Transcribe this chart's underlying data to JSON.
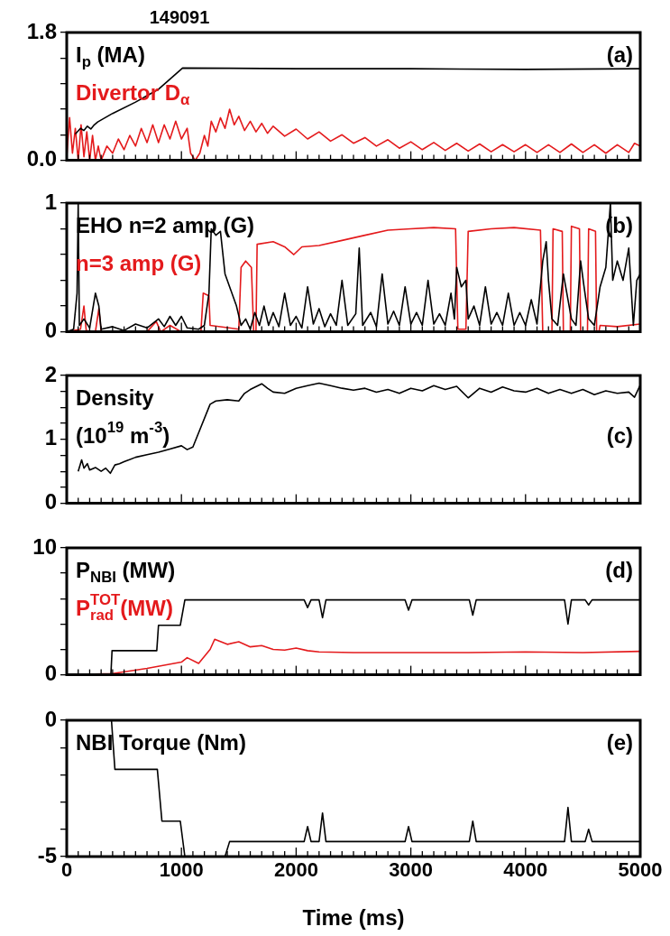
{
  "chart_data": [
    {
      "type": "line",
      "title": "149091",
      "annotations": [
        "(a)"
      ],
      "xlim": [
        0,
        5000
      ],
      "ylim": [
        0,
        1.8
      ],
      "yticks": [
        {
          "value": 0,
          "label": "0.0"
        },
        {
          "value": 0.36,
          "label": null
        },
        {
          "value": 0.72,
          "label": null
        },
        {
          "value": 1.08,
          "label": null
        },
        {
          "value": 1.44,
          "label": null
        },
        1.8
      ],
      "xticks": [
        {
          "value": 0,
          "label": null
        },
        {
          "value": 100,
          "label": null
        },
        {
          "value": 200,
          "label": null
        },
        {
          "value": 300,
          "label": null
        },
        {
          "value": 400,
          "label": null
        },
        {
          "value": 500,
          "label": null
        },
        {
          "value": 600,
          "label": null
        },
        {
          "value": 700,
          "label": null
        },
        {
          "value": 800,
          "label": null
        },
        {
          "value": 900,
          "label": null
        },
        {
          "value": 1000,
          "label": null
        },
        {
          "value": 1100,
          "label": null
        },
        {
          "value": 1200,
          "label": null
        },
        {
          "value": 1300,
          "label": null
        },
        {
          "value": 1400,
          "label": null
        },
        {
          "value": 1500,
          "label": null
        },
        {
          "value": 1600,
          "label": null
        },
        {
          "value": 1700,
          "label": null
        },
        {
          "value": 1800,
          "label": null
        },
        {
          "value": 1900,
          "label": null
        },
        {
          "value": 2000,
          "label": null
        },
        {
          "value": 2100,
          "label": null
        },
        {
          "value": 2200,
          "label": null
        },
        {
          "value": 2300,
          "label": null
        },
        {
          "value": 2400,
          "label": null
        },
        {
          "value": 2500,
          "label": null
        },
        {
          "value": 2600,
          "label": null
        },
        {
          "value": 2700,
          "label": null
        },
        {
          "value": 2800,
          "label": null
        },
        {
          "value": 2900,
          "label": null
        },
        {
          "value": 3000,
          "label": null
        },
        {
          "value": 3100,
          "label": null
        },
        {
          "value": 3200,
          "label": null
        },
        {
          "value": 3300,
          "label": null
        },
        {
          "value": 3400,
          "label": null
        },
        {
          "value": 3500,
          "label": null
        },
        {
          "value": 3600,
          "label": null
        },
        {
          "value": 3700,
          "label": null
        },
        {
          "value": 3800,
          "label": null
        },
        {
          "value": 3900,
          "label": null
        },
        {
          "value": 4000,
          "label": null
        },
        {
          "value": 4100,
          "label": null
        },
        {
          "value": 4200,
          "label": null
        },
        {
          "value": 4300,
          "label": null
        },
        {
          "value": 4400,
          "label": null
        },
        {
          "value": 4500,
          "label": null
        },
        {
          "value": 4600,
          "label": null
        },
        {
          "value": 4700,
          "label": null
        },
        {
          "value": 4800,
          "label": null
        },
        {
          "value": 4900,
          "label": null
        },
        {
          "value": 5000,
          "label": null
        }
      ],
      "tick_labels": "y",
      "series": [
        {
          "name": "I$_{p}$ (MA)",
          "color": "#000000",
          "x": [
            75,
            120,
            150,
            180,
            210,
            240,
            270,
            400,
            600,
            700,
            800,
            1010,
            2000,
            3000,
            4000,
            5000
          ],
          "values": [
            0.37,
            0.45,
            0.42,
            0.48,
            0.44,
            0.5,
            0.54,
            0.66,
            0.82,
            0.91,
            1.0,
            1.3,
            1.29,
            1.29,
            1.28,
            1.29
          ]
        },
        {
          "name": "Divertor D$_{α}$",
          "color": "#e41a1c",
          "x": [
            0,
            25,
            50,
            75,
            100,
            125,
            150,
            175,
            200,
            225,
            250,
            275,
            300,
            350,
            400,
            450,
            500,
            550,
            600,
            650,
            700,
            750,
            800,
            850,
            900,
            950,
            1000,
            1050,
            1080,
            1120,
            1160,
            1200,
            1230,
            1260,
            1300,
            1340,
            1380,
            1420,
            1460,
            1500,
            1550,
            1600,
            1650,
            1700,
            1750,
            1800,
            1900,
            2000,
            2100,
            2200,
            2300,
            2400,
            2500,
            2600,
            2700,
            2800,
            2900,
            3000,
            3100,
            3200,
            3300,
            3400,
            3500,
            3600,
            3700,
            3800,
            3900,
            4000,
            4100,
            4200,
            4300,
            4400,
            4500,
            4600,
            4700,
            4800,
            4900,
            4950,
            5000
          ],
          "values": [
            0.05,
            0.6,
            0.1,
            0.45,
            0.0,
            0.5,
            0.05,
            0.4,
            0.0,
            0.35,
            0.0,
            0.2,
            0.0,
            0.2,
            0.1,
            0.3,
            0.15,
            0.35,
            0.2,
            0.45,
            0.25,
            0.5,
            0.25,
            0.5,
            0.3,
            0.55,
            0.3,
            0.45,
            0.1,
            0.0,
            0.1,
            0.35,
            0.2,
            0.55,
            0.4,
            0.6,
            0.45,
            0.72,
            0.5,
            0.62,
            0.42,
            0.55,
            0.4,
            0.52,
            0.38,
            0.48,
            0.34,
            0.44,
            0.3,
            0.4,
            0.27,
            0.36,
            0.24,
            0.32,
            0.2,
            0.29,
            0.17,
            0.26,
            0.15,
            0.25,
            0.14,
            0.24,
            0.13,
            0.23,
            0.12,
            0.22,
            0.12,
            0.22,
            0.11,
            0.22,
            0.11,
            0.23,
            0.11,
            0.22,
            0.1,
            0.22,
            0.11,
            0.24,
            0.2
          ]
        }
      ]
    },
    {
      "type": "line",
      "annotations": [
        "(b)"
      ],
      "xlim": [
        0,
        5000
      ],
      "ylim": [
        0,
        1
      ],
      "yticks": [
        0,
        {
          "value": 0.2,
          "label": null
        },
        {
          "value": 0.4,
          "label": null
        },
        {
          "value": 0.6,
          "label": null
        },
        {
          "value": 0.8,
          "label": null
        },
        1
      ],
      "xticks": [
        {
          "value": 0,
          "label": null
        },
        {
          "value": 100,
          "label": null
        },
        {
          "value": 200,
          "label": null
        },
        {
          "value": 300,
          "label": null
        },
        {
          "value": 400,
          "label": null
        },
        {
          "value": 500,
          "label": null
        },
        {
          "value": 600,
          "label": null
        },
        {
          "value": 700,
          "label": null
        },
        {
          "value": 800,
          "label": null
        },
        {
          "value": 900,
          "label": null
        },
        {
          "value": 1000,
          "label": null
        },
        {
          "value": 1100,
          "label": null
        },
        {
          "value": 1200,
          "label": null
        },
        {
          "value": 1300,
          "label": null
        },
        {
          "value": 1400,
          "label": null
        },
        {
          "value": 1500,
          "label": null
        },
        {
          "value": 1600,
          "label": null
        },
        {
          "value": 1700,
          "label": null
        },
        {
          "value": 1800,
          "label": null
        },
        {
          "value": 1900,
          "label": null
        },
        {
          "value": 2000,
          "label": null
        },
        {
          "value": 2100,
          "label": null
        },
        {
          "value": 2200,
          "label": null
        },
        {
          "value": 2300,
          "label": null
        },
        {
          "value": 2400,
          "label": null
        },
        {
          "value": 2500,
          "label": null
        },
        {
          "value": 2600,
          "label": null
        },
        {
          "value": 2700,
          "label": null
        },
        {
          "value": 2800,
          "label": null
        },
        {
          "value": 2900,
          "label": null
        },
        {
          "value": 3000,
          "label": null
        },
        {
          "value": 3100,
          "label": null
        },
        {
          "value": 3200,
          "label": null
        },
        {
          "value": 3300,
          "label": null
        },
        {
          "value": 3400,
          "label": null
        },
        {
          "value": 3500,
          "label": null
        },
        {
          "value": 3600,
          "label": null
        },
        {
          "value": 3700,
          "label": null
        },
        {
          "value": 3800,
          "label": null
        },
        {
          "value": 3900,
          "label": null
        },
        {
          "value": 4000,
          "label": null
        },
        {
          "value": 4100,
          "label": null
        },
        {
          "value": 4200,
          "label": null
        },
        {
          "value": 4300,
          "label": null
        },
        {
          "value": 4400,
          "label": null
        },
        {
          "value": 4500,
          "label": null
        },
        {
          "value": 4600,
          "label": null
        },
        {
          "value": 4700,
          "label": null
        },
        {
          "value": 4800,
          "label": null
        },
        {
          "value": 4900,
          "label": null
        },
        {
          "value": 5000,
          "label": null
        }
      ],
      "tick_labels": "y",
      "series": [
        {
          "name": "EHO n=2 amp (G)",
          "color": "#000000",
          "x": [
            0,
            60,
            90,
            100,
            110,
            150,
            200,
            250,
            280,
            300,
            400,
            500,
            600,
            700,
            800,
            850,
            900,
            950,
            1000,
            1050,
            1150,
            1200,
            1240,
            1260,
            1300,
            1340,
            1380,
            1420,
            1480,
            1520,
            1560,
            1600,
            1640,
            1680,
            1720,
            1760,
            1800,
            1850,
            1900,
            1950,
            2000,
            2050,
            2100,
            2150,
            2200,
            2250,
            2300,
            2350,
            2400,
            2450,
            2520,
            2550,
            2580,
            2650,
            2700,
            2750,
            2800,
            2850,
            2900,
            2950,
            3000,
            3050,
            3100,
            3150,
            3200,
            3250,
            3300,
            3350,
            3380,
            3400,
            3440,
            3480,
            3500,
            3550,
            3600,
            3650,
            3700,
            3750,
            3800,
            3850,
            3900,
            3950,
            4000,
            4050,
            4100,
            4150,
            4180,
            4200,
            4230,
            4280,
            4330,
            4360,
            4400,
            4440,
            4480,
            4510,
            4550,
            4600,
            4650,
            4700,
            4740,
            4760,
            4800,
            4850,
            4900,
            4940,
            4970,
            5000
          ],
          "values": [
            0.0,
            0.02,
            0.3,
            1.0,
            0.05,
            0.1,
            0.03,
            0.3,
            0.2,
            0.02,
            0.04,
            0.01,
            0.06,
            0.03,
            0.1,
            0.04,
            0.12,
            0.05,
            0.12,
            0.03,
            0.02,
            0.05,
            0.3,
            0.8,
            0.75,
            0.78,
            0.45,
            0.35,
            0.2,
            0.05,
            0.1,
            0.02,
            0.15,
            0.05,
            0.2,
            0.05,
            0.15,
            0.04,
            0.3,
            0.05,
            0.12,
            0.03,
            0.35,
            0.06,
            0.18,
            0.04,
            0.14,
            0.05,
            0.4,
            0.05,
            0.14,
            0.65,
            0.05,
            0.15,
            0.04,
            0.45,
            0.06,
            0.16,
            0.05,
            0.35,
            0.06,
            0.15,
            0.05,
            0.4,
            0.06,
            0.14,
            0.05,
            0.3,
            0.1,
            0.5,
            0.35,
            0.4,
            0.1,
            0.2,
            0.05,
            0.35,
            0.06,
            0.15,
            0.05,
            0.3,
            0.05,
            0.15,
            0.05,
            0.25,
            0.06,
            0.55,
            0.7,
            0.4,
            0.1,
            0.05,
            0.45,
            0.3,
            0.1,
            0.05,
            0.55,
            0.35,
            0.1,
            0.05,
            0.35,
            0.5,
            1.0,
            0.4,
            0.55,
            0.4,
            0.65,
            0.05,
            0.4,
            0.45
          ]
        },
        {
          "name": "n=3 amp (G)",
          "color": "#e41a1c",
          "x": [
            0,
            120,
            150,
            170,
            250,
            280,
            300,
            700,
            780,
            820,
            900,
            1000,
            1170,
            1190,
            1240,
            1250,
            1500,
            1520,
            1560,
            1610,
            1630,
            1650,
            1660,
            1800,
            1900,
            1980,
            2050,
            2200,
            2400,
            2600,
            2800,
            3000,
            3200,
            3390,
            3410,
            3480,
            3500,
            3700,
            3900,
            4130,
            4150,
            4230,
            4240,
            4320,
            4330,
            4390,
            4400,
            4470,
            4480,
            4540,
            4550,
            4610,
            4620,
            4640,
            4650,
            4800,
            5000
          ],
          "values": [
            0.0,
            0.02,
            0.2,
            0.01,
            0.0,
            0.18,
            0.0,
            0.0,
            0.08,
            0.0,
            0.05,
            0.0,
            0.0,
            0.3,
            0.28,
            0.05,
            0.02,
            0.5,
            0.55,
            0.5,
            0.0,
            0.01,
            0.68,
            0.7,
            0.66,
            0.6,
            0.66,
            0.67,
            0.71,
            0.75,
            0.79,
            0.8,
            0.81,
            0.8,
            0.02,
            0.02,
            0.78,
            0.8,
            0.81,
            0.79,
            0.0,
            0.0,
            0.8,
            0.78,
            0.0,
            0.0,
            0.82,
            0.8,
            0.0,
            0.0,
            0.8,
            0.78,
            0.0,
            0.0,
            0.05,
            0.04,
            0.06
          ]
        }
      ]
    },
    {
      "type": "line",
      "annotations": [
        "(10$^{19}$ m$^{-3}$)",
        "(c)"
      ],
      "xlim": [
        0,
        5000
      ],
      "ylim": [
        0,
        2
      ],
      "yticks": [
        0,
        {
          "value": 0.25,
          "label": null
        },
        {
          "value": 0.5,
          "label": null
        },
        {
          "value": 0.75,
          "label": null
        },
        1,
        {
          "value": 1.25,
          "label": null
        },
        {
          "value": 1.5,
          "label": null
        },
        {
          "value": 1.75,
          "label": null
        },
        2
      ],
      "xticks": [
        {
          "value": 0,
          "label": null
        },
        {
          "value": 100,
          "label": null
        },
        {
          "value": 200,
          "label": null
        },
        {
          "value": 300,
          "label": null
        },
        {
          "value": 400,
          "label": null
        },
        {
          "value": 500,
          "label": null
        },
        {
          "value": 600,
          "label": null
        },
        {
          "value": 700,
          "label": null
        },
        {
          "value": 800,
          "label": null
        },
        {
          "value": 900,
          "label": null
        },
        {
          "value": 1000,
          "label": null
        },
        {
          "value": 1100,
          "label": null
        },
        {
          "value": 1200,
          "label": null
        },
        {
          "value": 1300,
          "label": null
        },
        {
          "value": 1400,
          "label": null
        },
        {
          "value": 1500,
          "label": null
        },
        {
          "value": 1600,
          "label": null
        },
        {
          "value": 1700,
          "label": null
        },
        {
          "value": 1800,
          "label": null
        },
        {
          "value": 1900,
          "label": null
        },
        {
          "value": 2000,
          "label": null
        },
        {
          "value": 2100,
          "label": null
        },
        {
          "value": 2200,
          "label": null
        },
        {
          "value": 2300,
          "label": null
        },
        {
          "value": 2400,
          "label": null
        },
        {
          "value": 2500,
          "label": null
        },
        {
          "value": 2600,
          "label": null
        },
        {
          "value": 2700,
          "label": null
        },
        {
          "value": 2800,
          "label": null
        },
        {
          "value": 2900,
          "label": null
        },
        {
          "value": 3000,
          "label": null
        },
        {
          "value": 3100,
          "label": null
        },
        {
          "value": 3200,
          "label": null
        },
        {
          "value": 3300,
          "label": null
        },
        {
          "value": 3400,
          "label": null
        },
        {
          "value": 3500,
          "label": null
        },
        {
          "value": 3600,
          "label": null
        },
        {
          "value": 3700,
          "label": null
        },
        {
          "value": 3800,
          "label": null
        },
        {
          "value": 3900,
          "label": null
        },
        {
          "value": 4000,
          "label": null
        },
        {
          "value": 4100,
          "label": null
        },
        {
          "value": 4200,
          "label": null
        },
        {
          "value": 4300,
          "label": null
        },
        {
          "value": 4400,
          "label": null
        },
        {
          "value": 4500,
          "label": null
        },
        {
          "value": 4600,
          "label": null
        },
        {
          "value": 4700,
          "label": null
        },
        {
          "value": 4800,
          "label": null
        },
        {
          "value": 4900,
          "label": null
        },
        {
          "value": 5000,
          "label": null
        }
      ],
      "tick_labels": "y",
      "series": [
        {
          "name": "Density",
          "color": "#000000",
          "x": [
            100,
            130,
            150,
            180,
            200,
            250,
            300,
            340,
            380,
            420,
            460,
            500,
            600,
            700,
            800,
            900,
            1000,
            1050,
            1100,
            1250,
            1300,
            1400,
            1500,
            1550,
            1600,
            1700,
            1750,
            1800,
            1900,
            2000,
            2100,
            2200,
            2300,
            2400,
            2500,
            2600,
            2700,
            2800,
            2900,
            3000,
            3100,
            3200,
            3300,
            3400,
            3500,
            3600,
            3700,
            3800,
            3900,
            4000,
            4100,
            4200,
            4300,
            4400,
            4500,
            4600,
            4700,
            4800,
            4900,
            4950,
            5000
          ],
          "values": [
            0.5,
            0.68,
            0.55,
            0.62,
            0.52,
            0.56,
            0.5,
            0.55,
            0.47,
            0.6,
            0.62,
            0.65,
            0.72,
            0.76,
            0.8,
            0.85,
            0.9,
            0.84,
            0.88,
            1.55,
            1.6,
            1.62,
            1.6,
            1.72,
            1.78,
            1.87,
            1.8,
            1.74,
            1.72,
            1.8,
            1.84,
            1.88,
            1.84,
            1.8,
            1.77,
            1.8,
            1.74,
            1.78,
            1.72,
            1.8,
            1.76,
            1.84,
            1.78,
            1.83,
            1.65,
            1.8,
            1.74,
            1.82,
            1.76,
            1.74,
            1.8,
            1.72,
            1.78,
            1.72,
            1.78,
            1.7,
            1.76,
            1.72,
            1.74,
            1.66,
            1.85
          ]
        }
      ]
    },
    {
      "type": "line",
      "annotations": [
        "(d)"
      ],
      "xlim": [
        0,
        5000
      ],
      "ylim": [
        0,
        10
      ],
      "yticks": [
        0,
        {
          "value": 2,
          "label": null
        },
        {
          "value": 4,
          "label": null
        },
        {
          "value": 6,
          "label": null
        },
        {
          "value": 8,
          "label": null
        },
        10
      ],
      "xticks": [
        {
          "value": 0,
          "label": null
        },
        {
          "value": 100,
          "label": null
        },
        {
          "value": 200,
          "label": null
        },
        {
          "value": 300,
          "label": null
        },
        {
          "value": 400,
          "label": null
        },
        {
          "value": 500,
          "label": null
        },
        {
          "value": 600,
          "label": null
        },
        {
          "value": 700,
          "label": null
        },
        {
          "value": 800,
          "label": null
        },
        {
          "value": 900,
          "label": null
        },
        {
          "value": 1000,
          "label": null
        },
        {
          "value": 1100,
          "label": null
        },
        {
          "value": 1200,
          "label": null
        },
        {
          "value": 1300,
          "label": null
        },
        {
          "value": 1400,
          "label": null
        },
        {
          "value": 1500,
          "label": null
        },
        {
          "value": 1600,
          "label": null
        },
        {
          "value": 1700,
          "label": null
        },
        {
          "value": 1800,
          "label": null
        },
        {
          "value": 1900,
          "label": null
        },
        {
          "value": 2000,
          "label": null
        },
        {
          "value": 2100,
          "label": null
        },
        {
          "value": 2200,
          "label": null
        },
        {
          "value": 2300,
          "label": null
        },
        {
          "value": 2400,
          "label": null
        },
        {
          "value": 2500,
          "label": null
        },
        {
          "value": 2600,
          "label": null
        },
        {
          "value": 2700,
          "label": null
        },
        {
          "value": 2800,
          "label": null
        },
        {
          "value": 2900,
          "label": null
        },
        {
          "value": 3000,
          "label": null
        },
        {
          "value": 3100,
          "label": null
        },
        {
          "value": 3200,
          "label": null
        },
        {
          "value": 3300,
          "label": null
        },
        {
          "value": 3400,
          "label": null
        },
        {
          "value": 3500,
          "label": null
        },
        {
          "value": 3600,
          "label": null
        },
        {
          "value": 3700,
          "label": null
        },
        {
          "value": 3800,
          "label": null
        },
        {
          "value": 3900,
          "label": null
        },
        {
          "value": 4000,
          "label": null
        },
        {
          "value": 4100,
          "label": null
        },
        {
          "value": 4200,
          "label": null
        },
        {
          "value": 4300,
          "label": null
        },
        {
          "value": 4400,
          "label": null
        },
        {
          "value": 4500,
          "label": null
        },
        {
          "value": 4600,
          "label": null
        },
        {
          "value": 4700,
          "label": null
        },
        {
          "value": 4800,
          "label": null
        },
        {
          "value": 4900,
          "label": null
        },
        {
          "value": 5000,
          "label": null
        }
      ],
      "tick_labels": "y",
      "series": [
        {
          "name": "P$_{NBI}$ (MW)",
          "color": "#000000",
          "x": [
            0,
            385,
            395,
            785,
            800,
            990,
            1030,
            2070,
            2100,
            2130,
            2200,
            2230,
            2260,
            2950,
            2980,
            3010,
            3510,
            3540,
            3570,
            4340,
            4370,
            4400,
            4520,
            4550,
            4580,
            5000
          ],
          "values": [
            0,
            0,
            1.9,
            1.9,
            3.9,
            3.9,
            5.9,
            5.9,
            5.3,
            5.9,
            5.9,
            4.5,
            5.9,
            5.9,
            5.1,
            5.9,
            5.9,
            4.7,
            5.9,
            5.9,
            4.0,
            5.9,
            5.9,
            5.5,
            5.9,
            5.9
          ]
        },
        {
          "name": "P$^{TOT}$$_{rad}$(MW)",
          "color": "#e41a1c",
          "x": [
            0,
            400,
            700,
            1000,
            1050,
            1150,
            1250,
            1290,
            1400,
            1500,
            1600,
            1700,
            1800,
            1900,
            2000,
            2100,
            2200,
            2500,
            3000,
            3500,
            4000,
            4500,
            5000
          ],
          "values": [
            0.0,
            0.1,
            0.5,
            1.0,
            1.35,
            0.9,
            2.0,
            2.8,
            2.4,
            2.6,
            2.2,
            2.3,
            2.0,
            1.95,
            2.1,
            1.9,
            1.8,
            1.75,
            1.75,
            1.75,
            1.8,
            1.75,
            1.85
          ]
        }
      ]
    },
    {
      "type": "line",
      "xlabel": "Time (ms)",
      "annotations": [
        "(e)"
      ],
      "xlim": [
        0,
        5000
      ],
      "ylim": [
        -5,
        0
      ],
      "yticks": [
        -5,
        {
          "value": -4,
          "label": null
        },
        {
          "value": -3,
          "label": null
        },
        {
          "value": -2,
          "label": null
        },
        {
          "value": -1,
          "label": null
        },
        0
      ],
      "xticks": [
        0,
        {
          "value": 100,
          "label": null
        },
        {
          "value": 200,
          "label": null
        },
        {
          "value": 300,
          "label": null
        },
        {
          "value": 400,
          "label": null
        },
        {
          "value": 500,
          "label": null
        },
        {
          "value": 600,
          "label": null
        },
        {
          "value": 700,
          "label": null
        },
        {
          "value": 800,
          "label": null
        },
        {
          "value": 900,
          "label": null
        },
        1000,
        {
          "value": 1100,
          "label": null
        },
        {
          "value": 1200,
          "label": null
        },
        {
          "value": 1300,
          "label": null
        },
        {
          "value": 1400,
          "label": null
        },
        {
          "value": 1500,
          "label": null
        },
        {
          "value": 1600,
          "label": null
        },
        {
          "value": 1700,
          "label": null
        },
        {
          "value": 1800,
          "label": null
        },
        {
          "value": 1900,
          "label": null
        },
        2000,
        {
          "value": 2100,
          "label": null
        },
        {
          "value": 2200,
          "label": null
        },
        {
          "value": 2300,
          "label": null
        },
        {
          "value": 2400,
          "label": null
        },
        {
          "value": 2500,
          "label": null
        },
        {
          "value": 2600,
          "label": null
        },
        {
          "value": 2700,
          "label": null
        },
        {
          "value": 2800,
          "label": null
        },
        {
          "value": 2900,
          "label": null
        },
        3000,
        {
          "value": 3100,
          "label": null
        },
        {
          "value": 3200,
          "label": null
        },
        {
          "value": 3300,
          "label": null
        },
        {
          "value": 3400,
          "label": null
        },
        {
          "value": 3500,
          "label": null
        },
        {
          "value": 3600,
          "label": null
        },
        {
          "value": 3700,
          "label": null
        },
        {
          "value": 3800,
          "label": null
        },
        {
          "value": 3900,
          "label": null
        },
        4000,
        {
          "value": 4100,
          "label": null
        },
        {
          "value": 4200,
          "label": null
        },
        {
          "value": 4300,
          "label": null
        },
        {
          "value": 4400,
          "label": null
        },
        {
          "value": 4500,
          "label": null
        },
        {
          "value": 4600,
          "label": null
        },
        {
          "value": 4700,
          "label": null
        },
        {
          "value": 4800,
          "label": null
        },
        {
          "value": 4900,
          "label": null
        },
        5000
      ],
      "series": [
        {
          "name": "NBI Torque (Nm)",
          "color": "#000000",
          "x": [
            0,
            390,
            420,
            790,
            830,
            990,
            1030,
            1380,
            1420,
            2070,
            2100,
            2130,
            2200,
            2230,
            2260,
            2950,
            2980,
            3010,
            3510,
            3540,
            3570,
            4340,
            4370,
            4400,
            4520,
            4550,
            4580,
            5000
          ],
          "values": [
            0,
            0,
            -1.8,
            -1.8,
            -3.7,
            -3.7,
            -5.0,
            -5.0,
            -4.45,
            -4.45,
            -3.9,
            -4.45,
            -4.45,
            -3.4,
            -4.45,
            -4.45,
            -3.9,
            -4.45,
            -4.45,
            -3.7,
            -4.45,
            -4.45,
            -3.2,
            -4.45,
            -4.45,
            -4.0,
            -4.45,
            -4.45
          ]
        }
      ]
    }
  ]
}
